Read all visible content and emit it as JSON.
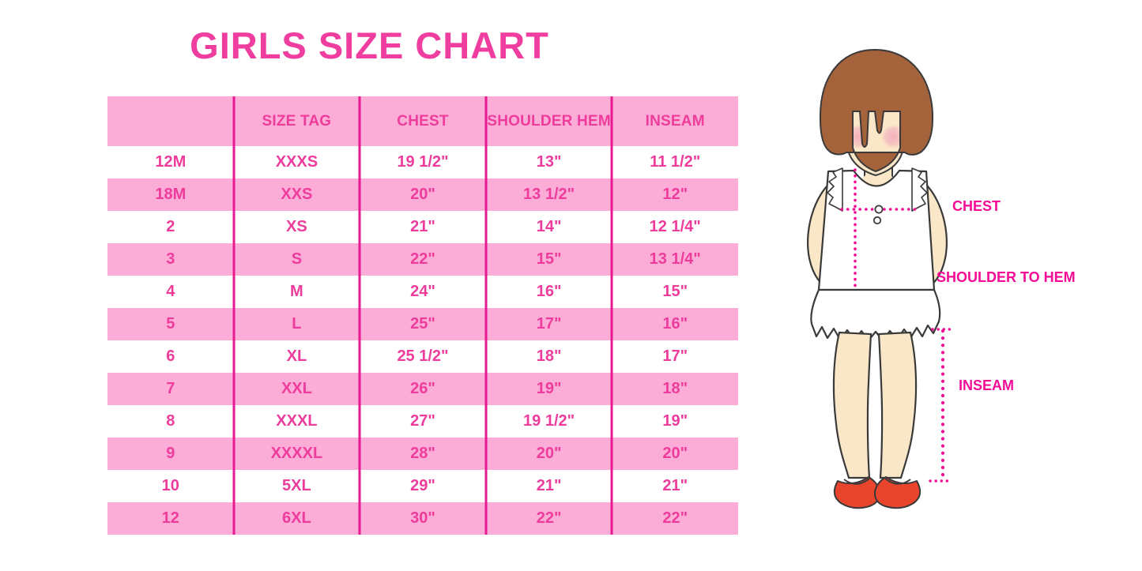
{
  "title": "GIRLS SIZE CHART",
  "table": {
    "headers": [
      "",
      "SIZE TAG",
      "CHEST",
      "SHOULDER HEM",
      "INSEAM"
    ],
    "rows": [
      [
        "12M",
        "XXXS",
        "19 1/2\"",
        "13\"",
        "11 1/2\""
      ],
      [
        "18M",
        "XXS",
        "20\"",
        "13 1/2\"",
        "12\""
      ],
      [
        "2",
        "XS",
        "21\"",
        "14\"",
        "12 1/4\""
      ],
      [
        "3",
        "S",
        "22\"",
        "15\"",
        "13 1/4\""
      ],
      [
        "4",
        "M",
        "24\"",
        "16\"",
        "15\""
      ],
      [
        "5",
        "L",
        "25\"",
        "17\"",
        "16\""
      ],
      [
        "6",
        "XL",
        "25 1/2\"",
        "18\"",
        "17\""
      ],
      [
        "7",
        "XXL",
        "26\"",
        "19\"",
        "18\""
      ],
      [
        "8",
        "XXXL",
        "27\"",
        "19 1/2\"",
        "19\""
      ],
      [
        "9",
        "XXXXL",
        "28\"",
        "20\"",
        "20\""
      ],
      [
        "10",
        "5XL",
        "29\"",
        "21\"",
        "21\""
      ],
      [
        "12",
        "6XL",
        "30\"",
        "22\"",
        "22\""
      ]
    ]
  },
  "diagram": {
    "labels": {
      "chest": "CHEST",
      "shoulder_to_hem": "SHOULDER TO HEM",
      "inseam": "INSEAM"
    }
  },
  "colors": {
    "title_pink": "#F03EA0",
    "table_text_pink": "#EE3C9C",
    "row_band_pink": "#FBADD7",
    "divider_magenta": "#E81890",
    "label_magenta": "#F50A96",
    "hair_brown": "#A5633C",
    "skin_cream": "#FAE7C8",
    "blush_pink": "#F2AEBC",
    "shoe_red": "#E8452C"
  }
}
